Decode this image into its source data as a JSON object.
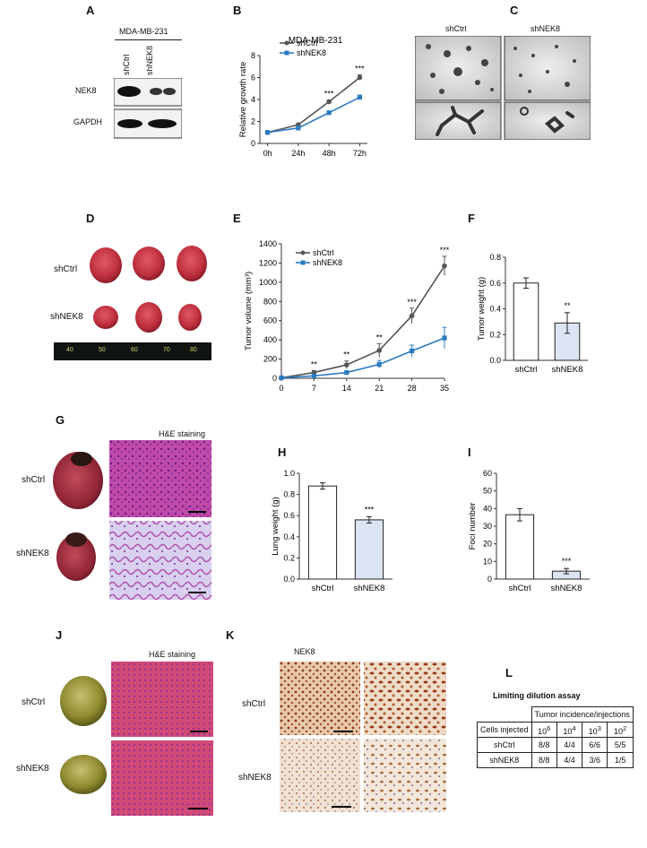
{
  "panel_letters": {
    "A": "A",
    "B": "B",
    "C": "C",
    "D": "D",
    "E": "E",
    "F": "F",
    "G": "G",
    "H": "H",
    "I": "I",
    "J": "J",
    "K": "K",
    "L": "L"
  },
  "panelA": {
    "cell_line": "MDA-MB-231",
    "lanes": [
      "shCtrl",
      "shNEK8"
    ],
    "rows": [
      "NEK8",
      "GAPDH"
    ]
  },
  "panelC": {
    "labels": [
      "shCtrl",
      "shNEK8"
    ]
  },
  "panelD": {
    "rows": [
      "shCtrl",
      "shNEK8"
    ],
    "ruler_marks": [
      "40",
      "50",
      "60",
      "70",
      "80"
    ]
  },
  "panelG": {
    "title": "H&E staining",
    "rows": [
      "shCtrl",
      "shNEK8"
    ]
  },
  "panelJ": {
    "title": "H&E staining",
    "rows": [
      "shCtrl",
      "shNEK8"
    ]
  },
  "panelK": {
    "title": "NEK8",
    "rows": [
      "shCtrl",
      "shNEK8"
    ]
  },
  "panelL": {
    "title": "Limiting dilution assay",
    "group_header": "Tumor incidence/injections",
    "row_header": "Cells injected",
    "dilutions": [
      {
        "base": "10",
        "exp": "6"
      },
      {
        "base": "10",
        "exp": "4"
      },
      {
        "base": "10",
        "exp": "3"
      },
      {
        "base": "10",
        "exp": "2"
      }
    ],
    "rows": [
      {
        "name": "shCtrl",
        "values": [
          "8/8",
          "4/4",
          "6/6",
          "5/5"
        ]
      },
      {
        "name": "shNEK8",
        "values": [
          "8/8",
          "4/4",
          "3/6",
          "1/5"
        ]
      }
    ]
  },
  "colors": {
    "ctrl_line": "#555555",
    "nek8_line": "#2b7bc2",
    "nek8_bar": "#dbe4f3",
    "ctrl_bar": "#ffffff"
  },
  "chart_data": [
    {
      "id": "B",
      "type": "line",
      "title": "MDA-MB-231",
      "xlabel": "",
      "ylabel": "Relative growth rate",
      "categories": [
        "0h",
        "24h",
        "48h",
        "72h"
      ],
      "ylim": [
        0,
        8
      ],
      "yticks": [
        0,
        2,
        4,
        6,
        8
      ],
      "series": [
        {
          "name": "shCtrl",
          "values": [
            1.0,
            1.7,
            3.8,
            6.0
          ],
          "errors": [
            0.05,
            0.1,
            0.15,
            0.25
          ]
        },
        {
          "name": "shNEK8",
          "values": [
            1.0,
            1.4,
            2.8,
            4.2
          ],
          "errors": [
            0.05,
            0.08,
            0.12,
            0.2
          ]
        }
      ],
      "annotations": [
        {
          "category": "48h",
          "text": "***"
        },
        {
          "category": "72h",
          "text": "***"
        }
      ]
    },
    {
      "id": "E",
      "type": "line",
      "title": "",
      "xlabel": "",
      "ylabel": "Tumor volume (mm³)",
      "x": [
        0,
        7,
        14,
        21,
        28,
        35
      ],
      "xticks": [
        "0",
        "7",
        "14",
        "21",
        "28",
        "35"
      ],
      "ylim": [
        0,
        1400
      ],
      "yticks": [
        0,
        200,
        400,
        600,
        800,
        1000,
        1200,
        1400
      ],
      "series": [
        {
          "name": "shCtrl",
          "values": [
            5,
            60,
            140,
            290,
            650,
            1170
          ],
          "errors": [
            3,
            20,
            40,
            70,
            80,
            100
          ]
        },
        {
          "name": "shNEK8",
          "values": [
            5,
            25,
            60,
            145,
            285,
            420
          ],
          "errors": [
            3,
            10,
            20,
            40,
            60,
            110
          ]
        }
      ],
      "annotations": [
        {
          "x": 7,
          "text": "**"
        },
        {
          "x": 14,
          "text": "**"
        },
        {
          "x": 21,
          "text": "**"
        },
        {
          "x": 28,
          "text": "***"
        },
        {
          "x": 35,
          "text": "***"
        }
      ]
    },
    {
      "id": "F",
      "type": "bar",
      "title": "",
      "xlabel": "",
      "ylabel": "Tumor weight (g)",
      "categories": [
        "shCtrl",
        "shNEK8"
      ],
      "values": [
        0.6,
        0.29
      ],
      "errors": [
        0.04,
        0.08
      ],
      "ylim": [
        0,
        0.8
      ],
      "yticks": [
        "0.0",
        "0.2",
        "0.4",
        "0.6",
        "0.8"
      ],
      "annotations": [
        {
          "category": "shNEK8",
          "text": "**"
        }
      ]
    },
    {
      "id": "H",
      "type": "bar",
      "title": "",
      "xlabel": "",
      "ylabel": "Lung weight (g)",
      "categories": [
        "shCtrl",
        "shNEK8"
      ],
      "values": [
        0.88,
        0.56
      ],
      "errors": [
        0.03,
        0.03
      ],
      "ylim": [
        0,
        1.0
      ],
      "yticks": [
        "0.0",
        "0.2",
        "0.4",
        "0.6",
        "0.8",
        "1.0"
      ],
      "annotations": [
        {
          "category": "shNEK8",
          "text": "***"
        }
      ]
    },
    {
      "id": "I",
      "type": "bar",
      "title": "",
      "xlabel": "",
      "ylabel": "Foci number",
      "categories": [
        "shCtrl",
        "shNEK8"
      ],
      "values": [
        36.5,
        4.5
      ],
      "errors": [
        3.5,
        1.5
      ],
      "ylim": [
        0,
        60
      ],
      "yticks": [
        "0",
        "10",
        "20",
        "30",
        "40",
        "50",
        "60"
      ],
      "annotations": [
        {
          "category": "shNEK8",
          "text": "***"
        }
      ]
    }
  ]
}
